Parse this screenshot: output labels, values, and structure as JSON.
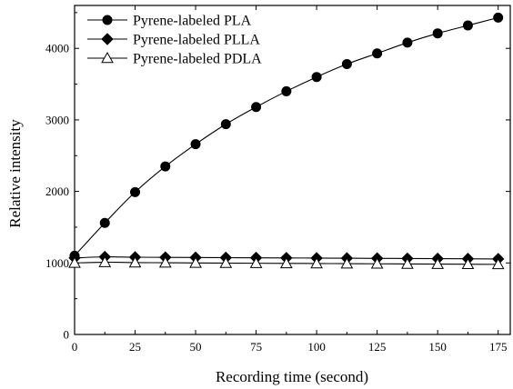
{
  "chart_data": {
    "type": "line",
    "title": "",
    "xlabel": "Recording time (second)",
    "ylabel": "Relative intensity",
    "xlim": [
      0,
      180
    ],
    "ylim": [
      0,
      4600
    ],
    "xticks": [
      0,
      25,
      50,
      75,
      100,
      125,
      150,
      175
    ],
    "yticks": [
      0,
      1000,
      2000,
      3000,
      4000
    ],
    "xtick_labels": [
      "0",
      "25",
      "50",
      "75",
      "100",
      "125",
      "150",
      "175"
    ],
    "ytick_labels": [
      "0",
      "1000",
      "2000",
      "3000",
      "4000"
    ],
    "grid": false,
    "legend_position": "top-left",
    "x": [
      0,
      12.5,
      25,
      37.5,
      50,
      62.5,
      75,
      87.5,
      100,
      112.5,
      125,
      137.5,
      150,
      162.5,
      175
    ],
    "series": [
      {
        "name": "Pyrene-labeled PLA",
        "marker": "filled-circle",
        "values": [
          1100,
          1560,
          1990,
          2350,
          2660,
          2940,
          3180,
          3400,
          3600,
          3780,
          3930,
          4080,
          4210,
          4320,
          4430
        ]
      },
      {
        "name": "Pyrene-labeled PLLA",
        "marker": "filled-diamond",
        "values": [
          1070,
          1085,
          1080,
          1078,
          1076,
          1074,
          1072,
          1070,
          1068,
          1066,
          1064,
          1062,
          1060,
          1058,
          1056
        ]
      },
      {
        "name": "Pyrene-labeled PDLA",
        "marker": "open-triangle",
        "values": [
          1000,
          1010,
          1005,
          1003,
          1000,
          998,
          996,
          994,
          992,
          990,
          988,
          986,
          984,
          982,
          980
        ]
      }
    ]
  }
}
